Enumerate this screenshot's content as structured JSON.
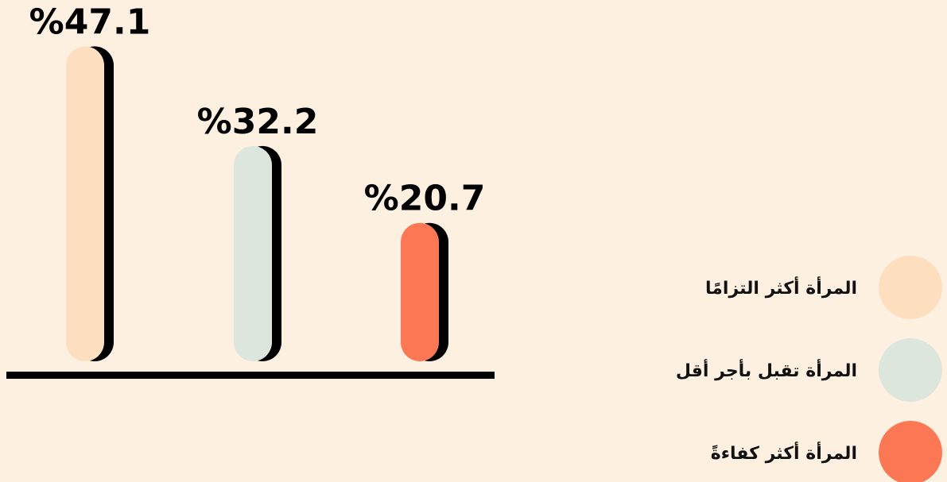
{
  "chart_data": {
    "type": "bar",
    "categories": [
      "المرأة أكثر التزامًا",
      "المرأة تقبل بأجر أقل",
      "المرأة أكثر كفاءةً"
    ],
    "values": [
      47.1,
      32.2,
      20.7
    ],
    "value_labels": [
      "%47.1",
      "%32.2",
      "%20.7"
    ],
    "colors": [
      "#fddfc0",
      "#dde6dc",
      "#fc7753"
    ],
    "ylim": [
      0,
      50
    ]
  }
}
